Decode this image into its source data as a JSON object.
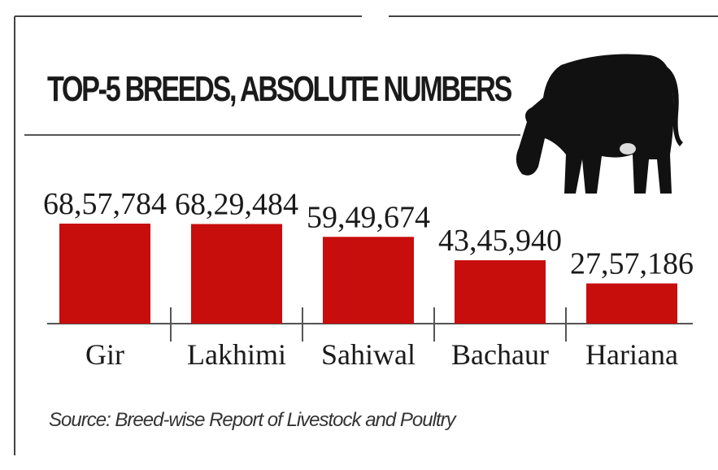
{
  "chart_data": {
    "type": "bar",
    "title": "TOP-5 BREEDS, ABSOLUTE NUMBERS",
    "categories": [
      "Gir",
      "Lakhimi",
      "Sahiwal",
      "Bachaur",
      "Hariana"
    ],
    "values": [
      6857784,
      6829484,
      5949674,
      4345940,
      2757186
    ],
    "value_labels": [
      "68,57,784",
      "68,29,484",
      "59,49,674",
      "43,45,940",
      "27,57,186"
    ],
    "color": "#c80d0d",
    "source": "Source: Breed-wise Report of Livestock and Poultry"
  }
}
